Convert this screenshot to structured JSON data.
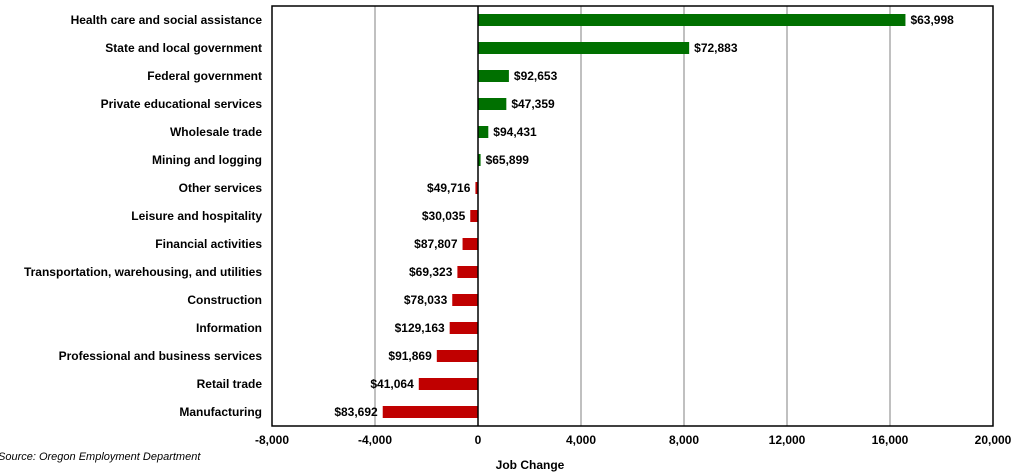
{
  "chart_data": {
    "type": "bar",
    "orientation": "horizontal",
    "categories": [
      "Health care and social assistance",
      "State and local government",
      "Federal government",
      "Private educational services",
      "Wholesale trade",
      "Mining and logging",
      "Other services",
      "Leisure and hospitality",
      "Financial activities",
      "Transportation, warehousing, and utilities",
      "Construction",
      "Information",
      "Professional and business services",
      "Retail trade",
      "Manufacturing"
    ],
    "values": [
      16600,
      8200,
      1200,
      1100,
      400,
      100,
      -100,
      -300,
      -600,
      -800,
      -1000,
      -1100,
      -1600,
      -2300,
      -3700
    ],
    "data_labels": [
      "$63,998",
      "$72,883",
      "$92,653",
      "$47,359",
      "$94,431",
      "$65,899",
      "$49,716",
      "$30,035",
      "$87,807",
      "$69,323",
      "$78,033",
      "$129,163",
      "$91,869",
      "$41,064",
      "$83,692"
    ],
    "xlim": [
      -8000,
      20000
    ],
    "x_ticks": [
      -8000,
      -4000,
      0,
      4000,
      8000,
      12000,
      16000,
      20000
    ],
    "x_tick_labels": [
      "-8,000",
      "-4,000",
      "0",
      "4,000",
      "8,000",
      "12,000",
      "16,000",
      "20,000"
    ],
    "xlabel": "Job Change",
    "grid": true,
    "colors": {
      "positive": "#007000",
      "negative": "#c00000",
      "grid": "#808080",
      "axis": "#000000"
    }
  },
  "source_note": "Source: Oregon Employment Department"
}
